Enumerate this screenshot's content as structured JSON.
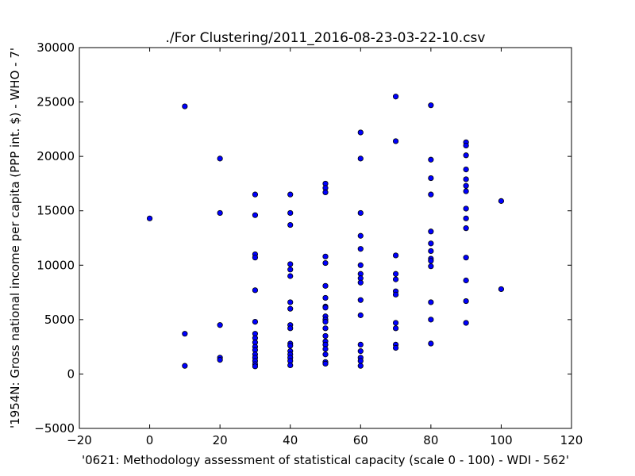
{
  "chart_data": {
    "type": "scatter",
    "title": "./For Clustering/2011_2016-08-23-03-22-10.csv",
    "xlabel": "'0621: Methodology assessment of statistical capacity  (scale 0 - 100) - WDI - 562'",
    "ylabel": "'1954N: Gross national income per capita (PPP int. $) - WHO - 7'",
    "xlim": [
      -20,
      120
    ],
    "ylim": [
      -5000,
      30000
    ],
    "xticks": [
      -20,
      0,
      20,
      40,
      60,
      80,
      100,
      120
    ],
    "yticks": [
      -5000,
      0,
      5000,
      10000,
      15000,
      20000,
      25000,
      30000
    ],
    "xtick_labels": [
      "−20",
      "0",
      "20",
      "40",
      "60",
      "80",
      "100",
      "120"
    ],
    "ytick_labels": [
      "−5000",
      "0",
      "5000",
      "10000",
      "15000",
      "20000",
      "25000",
      "30000"
    ],
    "grid": false,
    "marker_color": "#0000ff",
    "marker_edge": "#000000",
    "points": [
      [
        0,
        14300
      ],
      [
        10,
        24600
      ],
      [
        10,
        3700
      ],
      [
        10,
        750
      ],
      [
        20,
        19800
      ],
      [
        20,
        14800
      ],
      [
        20,
        4500
      ],
      [
        20,
        1500
      ],
      [
        20,
        1300
      ],
      [
        30,
        16500
      ],
      [
        30,
        14600
      ],
      [
        30,
        11000
      ],
      [
        30,
        10700
      ],
      [
        30,
        7700
      ],
      [
        30,
        4800
      ],
      [
        30,
        3700
      ],
      [
        30,
        3300
      ],
      [
        30,
        2900
      ],
      [
        30,
        2500
      ],
      [
        30,
        2200
      ],
      [
        30,
        1800
      ],
      [
        30,
        1500
      ],
      [
        30,
        1200
      ],
      [
        30,
        900
      ],
      [
        30,
        700
      ],
      [
        40,
        16500
      ],
      [
        40,
        14800
      ],
      [
        40,
        13700
      ],
      [
        40,
        10100
      ],
      [
        40,
        9600
      ],
      [
        40,
        9000
      ],
      [
        40,
        6600
      ],
      [
        40,
        6000
      ],
      [
        40,
        4500
      ],
      [
        40,
        4200
      ],
      [
        40,
        2800
      ],
      [
        40,
        2600
      ],
      [
        40,
        2100
      ],
      [
        40,
        1800
      ],
      [
        40,
        1500
      ],
      [
        40,
        1200
      ],
      [
        40,
        800
      ],
      [
        50,
        17500
      ],
      [
        50,
        17100
      ],
      [
        50,
        16700
      ],
      [
        50,
        10800
      ],
      [
        50,
        10200
      ],
      [
        50,
        8100
      ],
      [
        50,
        7000
      ],
      [
        50,
        6200
      ],
      [
        50,
        6100
      ],
      [
        50,
        5300
      ],
      [
        50,
        5000
      ],
      [
        50,
        4800
      ],
      [
        50,
        4200
      ],
      [
        50,
        3500
      ],
      [
        50,
        3000
      ],
      [
        50,
        2700
      ],
      [
        50,
        2300
      ],
      [
        50,
        1800
      ],
      [
        50,
        1100
      ],
      [
        50,
        950
      ],
      [
        60,
        22200
      ],
      [
        60,
        19800
      ],
      [
        60,
        14800
      ],
      [
        60,
        12700
      ],
      [
        60,
        11500
      ],
      [
        60,
        10000
      ],
      [
        60,
        9200
      ],
      [
        60,
        8800
      ],
      [
        60,
        8400
      ],
      [
        60,
        6800
      ],
      [
        60,
        5400
      ],
      [
        60,
        2700
      ],
      [
        60,
        2100
      ],
      [
        60,
        1500
      ],
      [
        60,
        1200
      ],
      [
        60,
        750
      ],
      [
        70,
        25500
      ],
      [
        70,
        21400
      ],
      [
        70,
        10900
      ],
      [
        70,
        9200
      ],
      [
        70,
        8700
      ],
      [
        70,
        7600
      ],
      [
        70,
        7300
      ],
      [
        70,
        4700
      ],
      [
        70,
        4200
      ],
      [
        70,
        2700
      ],
      [
        70,
        2400
      ],
      [
        80,
        24700
      ],
      [
        80,
        19700
      ],
      [
        80,
        18000
      ],
      [
        80,
        16500
      ],
      [
        80,
        13100
      ],
      [
        80,
        12000
      ],
      [
        80,
        11300
      ],
      [
        80,
        10600
      ],
      [
        80,
        10400
      ],
      [
        80,
        9900
      ],
      [
        80,
        6600
      ],
      [
        80,
        5000
      ],
      [
        80,
        2800
      ],
      [
        90,
        21300
      ],
      [
        90,
        21000
      ],
      [
        90,
        20100
      ],
      [
        90,
        18800
      ],
      [
        90,
        17900
      ],
      [
        90,
        17300
      ],
      [
        90,
        16800
      ],
      [
        90,
        15200
      ],
      [
        90,
        14300
      ],
      [
        90,
        13400
      ],
      [
        90,
        10700
      ],
      [
        90,
        8600
      ],
      [
        90,
        6700
      ],
      [
        90,
        4700
      ],
      [
        100,
        15900
      ],
      [
        100,
        7800
      ]
    ]
  }
}
